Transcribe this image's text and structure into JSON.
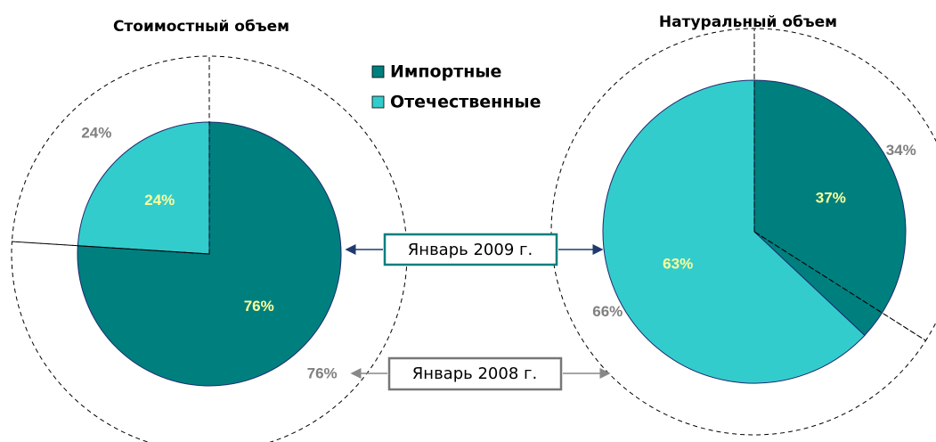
{
  "chart_data": [
    {
      "type": "pie",
      "title": "Стоимостный объем",
      "categories": [
        "Импортные",
        "Отечественные"
      ],
      "colors": [
        "#007f7f",
        "#33cccc"
      ],
      "series": [
        {
          "name": "Январь 2009 г.",
          "values": [
            76,
            24
          ],
          "value_labels": [
            "76%",
            "24%"
          ]
        },
        {
          "name": "Январь 2008 г.",
          "values": [
            76,
            24
          ],
          "value_labels": [
            "76%",
            "24%"
          ]
        }
      ]
    },
    {
      "type": "pie",
      "title": "Натуральный объем",
      "categories": [
        "Импортные",
        "Отечественные"
      ],
      "colors": [
        "#007f7f",
        "#33cccc"
      ],
      "series": [
        {
          "name": "Январь 2009 г.",
          "values": [
            37,
            63
          ],
          "value_labels": [
            "37%",
            "63%"
          ]
        },
        {
          "name": "Январь 2008 г.",
          "values": [
            34,
            66
          ],
          "value_labels": [
            "34%",
            "66%"
          ]
        }
      ]
    }
  ]
}
